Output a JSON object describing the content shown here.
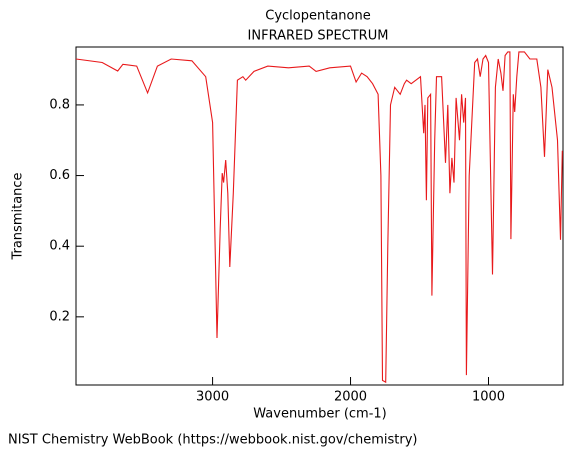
{
  "chart_data": {
    "type": "line",
    "title": "Cyclopentanone",
    "subtitle": "INFRARED SPECTRUM",
    "x_label": "Wavenumber (cm-1)",
    "y_label": "Transmitance",
    "color": "#e8191b",
    "xlim": [
      3990,
      460
    ],
    "ylim": [
      0.007,
      0.964
    ],
    "xticks": [
      3000,
      2000,
      1000
    ],
    "yticks": [
      0.2,
      0.4,
      0.6,
      0.8
    ],
    "x": [
      3990,
      3800,
      3688,
      3650,
      3550,
      3471,
      3400,
      3300,
      3150,
      3050,
      3000,
      2968,
      2945,
      2930,
      2920,
      2905,
      2890,
      2875,
      2850,
      2820,
      2780,
      2760,
      2700,
      2600,
      2450,
      2300,
      2250,
      2150,
      2000,
      1960,
      1920,
      1880,
      1840,
      1800,
      1780,
      1768,
      1745,
      1730,
      1710,
      1680,
      1640,
      1610,
      1594,
      1560,
      1493,
      1470,
      1460,
      1450,
      1440,
      1420,
      1410,
      1390,
      1377,
      1340,
      1312,
      1295,
      1280,
      1265,
      1250,
      1235,
      1210,
      1195,
      1180,
      1167,
      1160,
      1140,
      1100,
      1080,
      1060,
      1040,
      1020,
      1000,
      971,
      950,
      930,
      910,
      895,
      880,
      860,
      845,
      838,
      820,
      810,
      795,
      780,
      740,
      700,
      650,
      620,
      594,
      570,
      540,
      500,
      478,
      465
    ],
    "values": [
      0.93,
      0.92,
      0.896,
      0.915,
      0.91,
      0.834,
      0.91,
      0.93,
      0.925,
      0.88,
      0.75,
      0.14,
      0.45,
      0.607,
      0.58,
      0.644,
      0.55,
      0.341,
      0.55,
      0.87,
      0.88,
      0.87,
      0.895,
      0.91,
      0.905,
      0.91,
      0.895,
      0.905,
      0.91,
      0.865,
      0.89,
      0.88,
      0.86,
      0.83,
      0.6,
      0.02,
      0.015,
      0.4,
      0.8,
      0.85,
      0.83,
      0.86,
      0.87,
      0.86,
      0.88,
      0.72,
      0.8,
      0.53,
      0.82,
      0.83,
      0.26,
      0.7,
      0.88,
      0.88,
      0.636,
      0.8,
      0.55,
      0.65,
      0.58,
      0.82,
      0.7,
      0.83,
      0.75,
      0.82,
      0.035,
      0.6,
      0.92,
      0.93,
      0.88,
      0.93,
      0.94,
      0.92,
      0.32,
      0.85,
      0.93,
      0.89,
      0.84,
      0.94,
      0.95,
      0.95,
      0.42,
      0.83,
      0.78,
      0.88,
      0.95,
      0.95,
      0.93,
      0.93,
      0.85,
      0.653,
      0.9,
      0.85,
      0.7,
      0.418,
      0.67
    ]
  },
  "footer": "NIST Chemistry WebBook (https://webbook.nist.gov/chemistry)"
}
